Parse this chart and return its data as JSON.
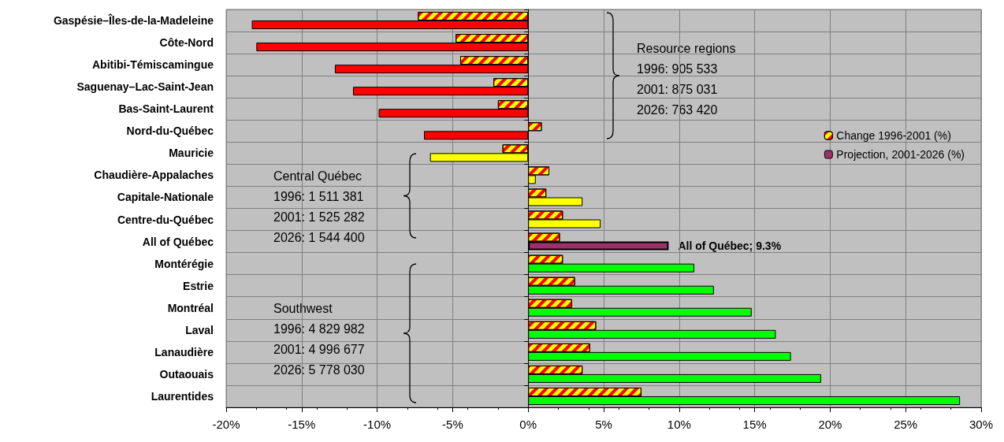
{
  "chart_data": {
    "type": "bar",
    "orientation": "horizontal",
    "categories": [
      "Gaspésie–Îles-de-la-Madeleine",
      "Côte-Nord",
      "Abitibi-Témiscamingue",
      "Saguenay–Lac-Saint-Jean",
      "Bas-Saint-Laurent",
      "Nord-du-Québec",
      "Mauricie",
      "Chaudière-Appalaches",
      "Capitale-Nationale",
      "Centre-du-Québec",
      "All of Québec",
      "Montérégie",
      "Estrie",
      "Montréal",
      "Laval",
      "Lanaudière",
      "Outaouais",
      "Laurentides"
    ],
    "series": [
      {
        "name": "Change 1996-2001 (%)",
        "color": "#ffff00",
        "values": [
          -7.3,
          -4.8,
          -4.5,
          -2.3,
          -2.0,
          0.9,
          -1.7,
          1.4,
          1.2,
          2.3,
          2.1,
          2.3,
          3.1,
          2.9,
          4.5,
          4.1,
          3.6,
          7.5
        ]
      },
      {
        "name": "Projection, 2001-2026 (%)",
        "color": "#993366",
        "values": [
          -18.3,
          -18.0,
          -12.8,
          -11.6,
          -9.9,
          -6.9,
          -6.5,
          0.5,
          3.6,
          4.8,
          9.3,
          11.0,
          12.3,
          14.8,
          16.4,
          17.4,
          19.4,
          28.6
        ],
        "colors": [
          "#ff0000",
          "#ff0000",
          "#ff0000",
          "#ff0000",
          "#ff0000",
          "#ff0000",
          "#ffff00",
          "#ffff00",
          "#ffff00",
          "#ffff00",
          "#993366",
          "#00ff00",
          "#00ff00",
          "#00ff00",
          "#00ff00",
          "#00ff00",
          "#00ff00",
          "#00ff00"
        ]
      }
    ],
    "xlim": [
      -20,
      30
    ],
    "xticks": [
      {
        "value": -20,
        "label": "-20%"
      },
      {
        "value": -15,
        "label": "-15%"
      },
      {
        "value": -10,
        "label": "-10%"
      },
      {
        "value": -5,
        "label": "-5%"
      },
      {
        "value": 0,
        "label": "0%"
      },
      {
        "value": 5,
        "label": "5%"
      },
      {
        "value": 10,
        "label": "10%"
      },
      {
        "value": 15,
        "label": "15%"
      },
      {
        "value": 20,
        "label": "20%"
      },
      {
        "value": 25,
        "label": "25%"
      },
      {
        "value": 30,
        "label": "30%"
      }
    ],
    "grid": true,
    "legend": "right",
    "annotations": [
      "Resource regions\n1996: 905 533\n2001: 875 031\n2026: 763 420",
      "Central Québec\n1996: 1 511 381\n2001: 1 525 282\n2026: 1 544 400",
      "Southwest\n1996: 4 829 982\n2001: 4 996 677\n2026: 5 778 030",
      {
        "text": "All of Québec; 9.3%",
        "x": 9.3,
        "y": "All of Québec"
      }
    ]
  }
}
